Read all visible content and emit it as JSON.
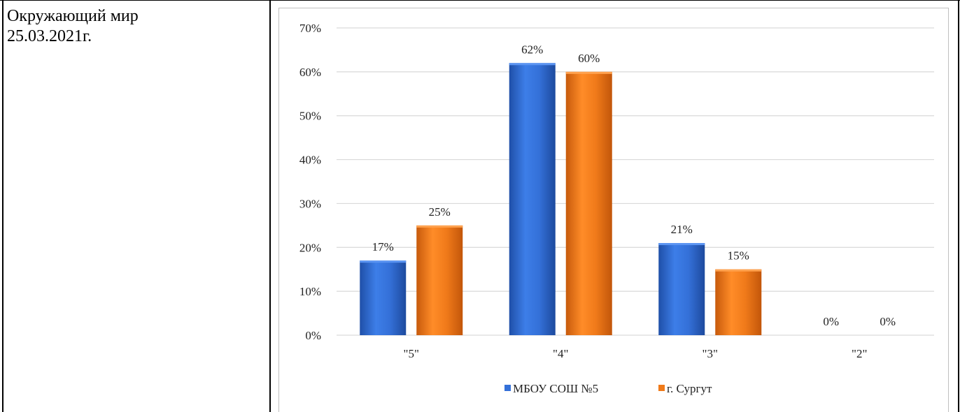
{
  "subject": {
    "line1": "Окружающий мир",
    "line2": "25.03.2021г."
  },
  "colors": {
    "series_1": "#3470d8",
    "series_2": "#f07a1a",
    "gridline": "#d9d9d9",
    "frame": "#000000"
  },
  "chart_data": {
    "type": "bar",
    "title": "",
    "xlabel": "",
    "ylabel": "",
    "categories": [
      "\"5\"",
      "\"4\"",
      "\"3\"",
      "\"2\""
    ],
    "series": [
      {
        "name": "МБОУ СОШ №5",
        "values": [
          17,
          62,
          21,
          0
        ],
        "labels": [
          "17%",
          "62%",
          "21%",
          "0%"
        ]
      },
      {
        "name": "г. Сургут",
        "values": [
          25,
          60,
          15,
          0
        ],
        "labels": [
          "25%",
          "60%",
          "15%",
          "0%"
        ]
      }
    ],
    "ylim": [
      0,
      70
    ],
    "yticks": [
      {
        "value": 0,
        "label": "0%"
      },
      {
        "value": 10,
        "label": "10%"
      },
      {
        "value": 20,
        "label": "20%"
      },
      {
        "value": 30,
        "label": "30%"
      },
      {
        "value": 40,
        "label": "40%"
      },
      {
        "value": 50,
        "label": "50%"
      },
      {
        "value": 60,
        "label": "60%"
      },
      {
        "value": 70,
        "label": "70%"
      }
    ],
    "grid": true,
    "legend": "bottom"
  }
}
